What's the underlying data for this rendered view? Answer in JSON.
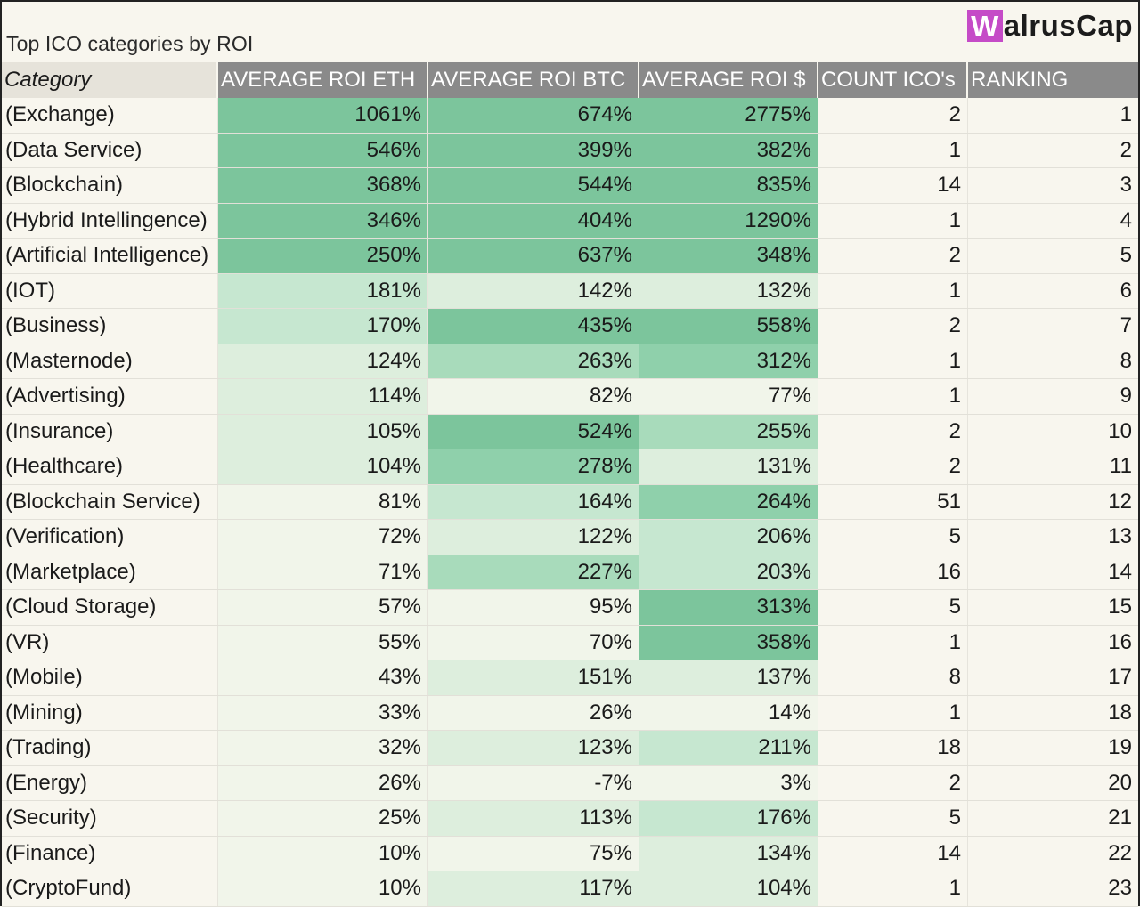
{
  "title": "Top ICO categories by ROI",
  "logo": {
    "initial": "W",
    "rest": "alrusCap",
    "accent": "#c54bc7"
  },
  "colors": {
    "header_bg": "#8a8a8a",
    "heat_low": "#f2f6ec",
    "heat_high": "#7cc59c",
    "page_bg": "#f8f6ee"
  },
  "chart_data": {
    "type": "table",
    "columns": [
      "Category",
      "AVERAGE ROI ETH",
      "AVERAGE ROI BTC",
      "AVERAGE ROI $",
      "COUNT ICO's",
      "RANKING"
    ],
    "rows": [
      [
        "(Exchange)",
        "1061%",
        "674%",
        "2775%",
        "2",
        "1"
      ],
      [
        "(Data Service)",
        "546%",
        "399%",
        "382%",
        "1",
        "2"
      ],
      [
        "(Blockchain)",
        "368%",
        "544%",
        "835%",
        "14",
        "3"
      ],
      [
        "(Hybrid Intellingence)",
        "346%",
        "404%",
        "1290%",
        "1",
        "4"
      ],
      [
        "(Artificial Intelligence)",
        "250%",
        "637%",
        "348%",
        "2",
        "5"
      ],
      [
        "(IOT)",
        "181%",
        "142%",
        "132%",
        "1",
        "6"
      ],
      [
        "(Business)",
        "170%",
        "435%",
        "558%",
        "2",
        "7"
      ],
      [
        "(Masternode)",
        "124%",
        "263%",
        "312%",
        "1",
        "8"
      ],
      [
        "(Advertising)",
        "114%",
        "82%",
        "77%",
        "1",
        "9"
      ],
      [
        "(Insurance)",
        "105%",
        "524%",
        "255%",
        "2",
        "10"
      ],
      [
        "(Healthcare)",
        "104%",
        "278%",
        "131%",
        "2",
        "11"
      ],
      [
        "(Blockchain Service)",
        "81%",
        "164%",
        "264%",
        "51",
        "12"
      ],
      [
        "(Verification)",
        "72%",
        "122%",
        "206%",
        "5",
        "13"
      ],
      [
        "(Marketplace)",
        "71%",
        "227%",
        "203%",
        "16",
        "14"
      ],
      [
        "(Cloud Storage)",
        "57%",
        "95%",
        "313%",
        "5",
        "15"
      ],
      [
        "(VR)",
        "55%",
        "70%",
        "358%",
        "1",
        "16"
      ],
      [
        "(Mobile)",
        "43%",
        "151%",
        "137%",
        "8",
        "17"
      ],
      [
        "(Mining)",
        "33%",
        "26%",
        "14%",
        "1",
        "18"
      ],
      [
        "(Trading)",
        "32%",
        "123%",
        "211%",
        "18",
        "19"
      ],
      [
        "(Energy)",
        "26%",
        "-7%",
        "3%",
        "2",
        "20"
      ],
      [
        "(Security)",
        "25%",
        "113%",
        "176%",
        "5",
        "21"
      ],
      [
        "(Finance)",
        "10%",
        "75%",
        "134%",
        "14",
        "22"
      ],
      [
        "(CryptoFund)",
        "10%",
        "117%",
        "104%",
        "1",
        "23"
      ]
    ],
    "shading": [
      [
        5,
        5,
        5
      ],
      [
        5,
        5,
        5
      ],
      [
        5,
        5,
        5
      ],
      [
        5,
        5,
        5
      ],
      [
        5,
        5,
        5
      ],
      [
        2,
        1,
        1
      ],
      [
        2,
        5,
        5
      ],
      [
        1,
        3,
        4
      ],
      [
        1,
        0,
        0
      ],
      [
        1,
        5,
        3
      ],
      [
        1,
        4,
        1
      ],
      [
        0,
        2,
        4
      ],
      [
        0,
        1,
        2
      ],
      [
        0,
        3,
        2
      ],
      [
        0,
        0,
        5
      ],
      [
        0,
        0,
        5
      ],
      [
        0,
        1,
        1
      ],
      [
        0,
        0,
        0
      ],
      [
        0,
        1,
        2
      ],
      [
        0,
        0,
        0
      ],
      [
        0,
        1,
        2
      ],
      [
        0,
        0,
        1
      ],
      [
        0,
        1,
        1
      ]
    ]
  }
}
